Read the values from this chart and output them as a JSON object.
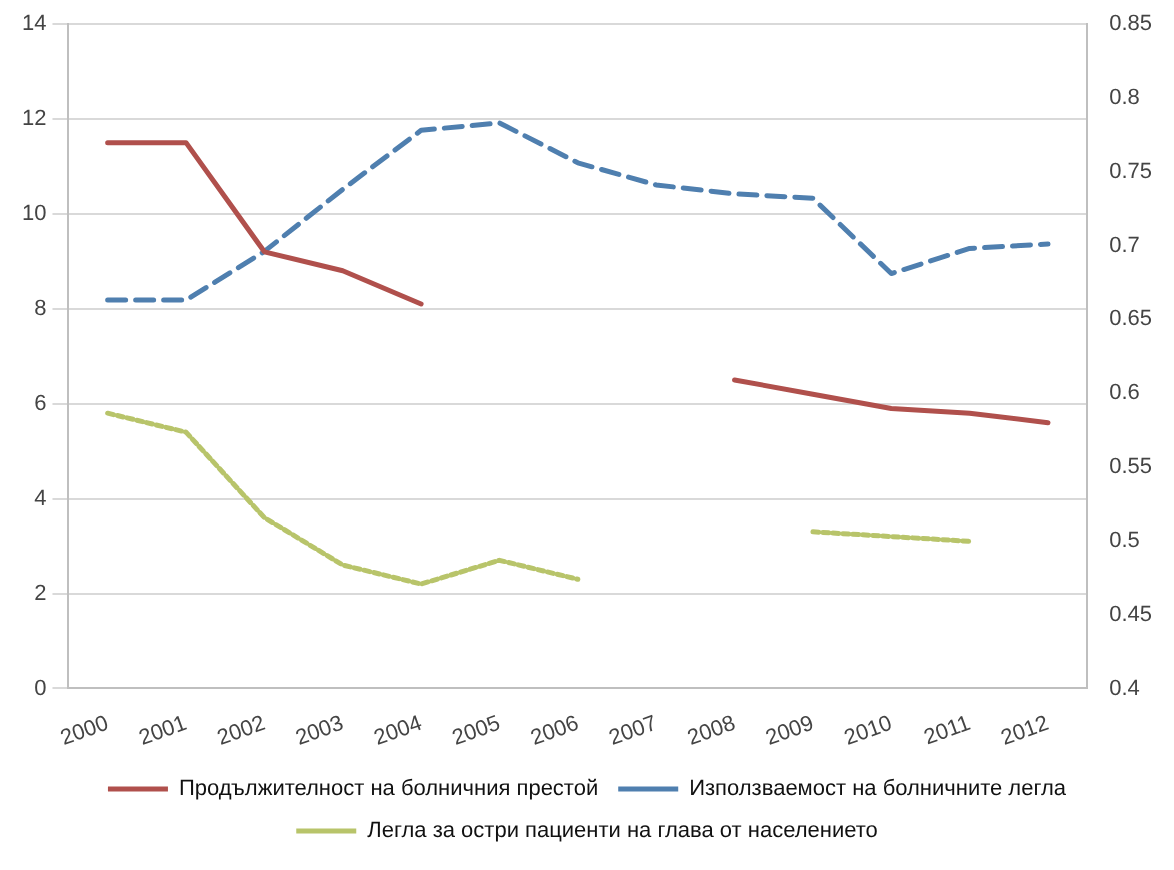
{
  "chart_data": {
    "type": "line",
    "categories": [
      "2000",
      "2001",
      "2002",
      "2003",
      "2004",
      "2005",
      "2006",
      "2007",
      "2008",
      "2009",
      "2010",
      "2011",
      "2012"
    ],
    "series": [
      {
        "name": "Продължителност на болничния престой",
        "color": "#b0504c",
        "line_style": "solid",
        "values": [
          11.5,
          11.5,
          9.2,
          8.8,
          8.1,
          null,
          null,
          null,
          6.5,
          6.2,
          5.9,
          5.8,
          5.6
        ]
      },
      {
        "name": "Използваемост на болничните легла",
        "color": "#4f7faf",
        "line_style": "dashed",
        "axis": "y2",
        "values": [
          0.663,
          0.663,
          0.696,
          0.738,
          0.778,
          0.783,
          0.756,
          0.741,
          0.735,
          0.732,
          0.681,
          0.698,
          0.701
        ]
      },
      {
        "name": "Легла за остри пациенти на глава от населението",
        "color": "#b8c46a",
        "line_style": "dotted",
        "values": [
          5.8,
          5.4,
          3.6,
          2.6,
          2.2,
          2.7,
          2.3,
          null,
          null,
          3.3,
          3.2,
          3.1,
          null
        ]
      }
    ],
    "ylim": [
      0,
      14
    ],
    "yticks": [
      0,
      2,
      4,
      6,
      8,
      10,
      12,
      14
    ],
    "y2lim": [
      0.4,
      0.85
    ],
    "y2ticks": [
      0.4,
      0.45,
      0.5,
      0.55,
      0.6,
      0.65,
      0.7,
      0.75,
      0.8,
      0.85
    ],
    "grid": "y",
    "legend": "bottom",
    "marker": "none"
  }
}
